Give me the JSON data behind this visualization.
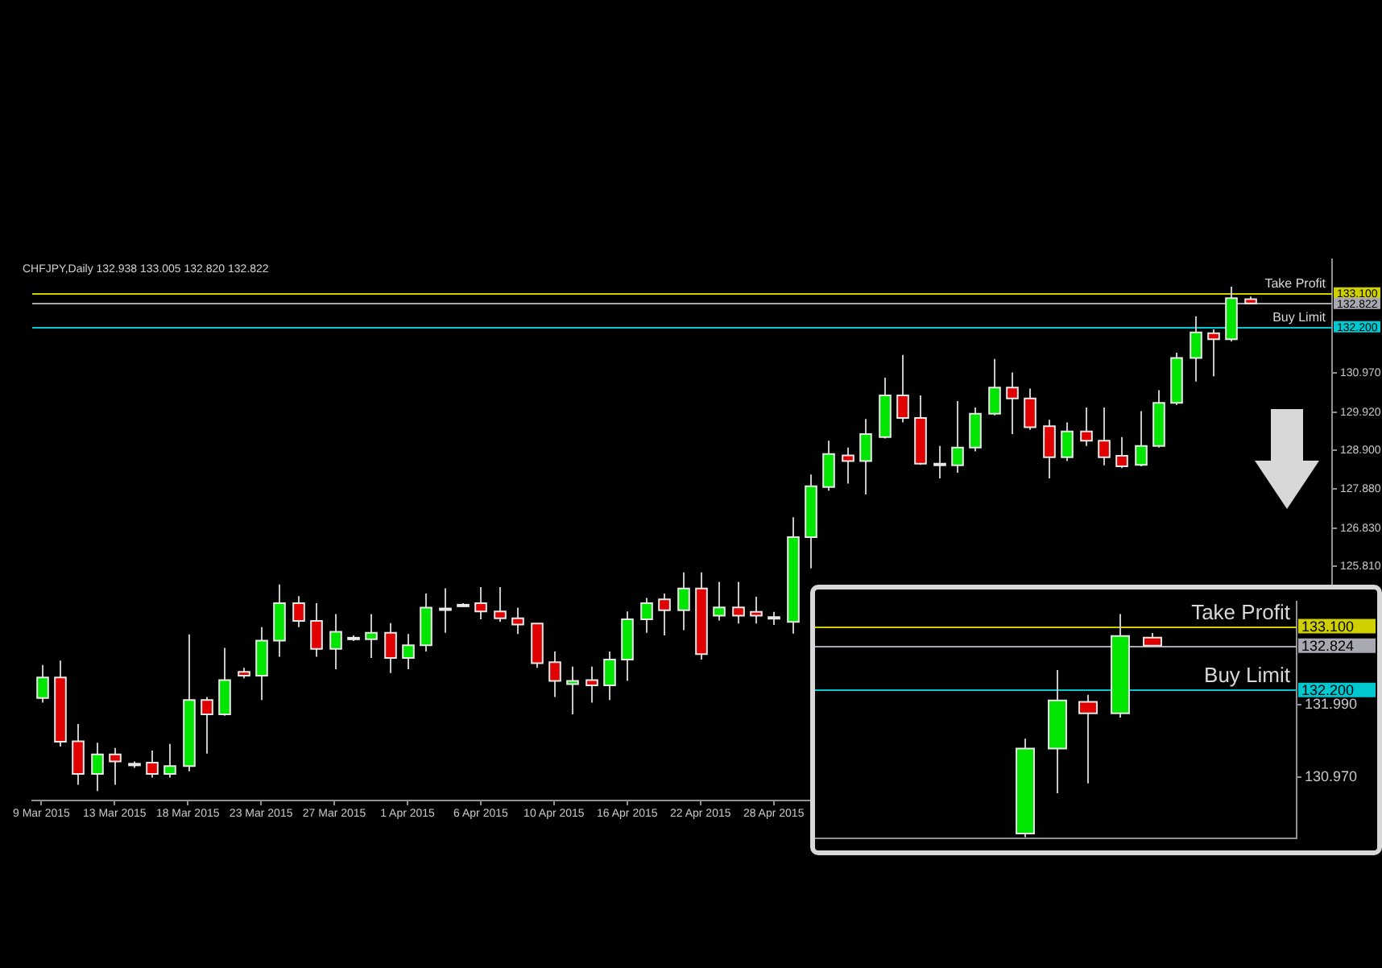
{
  "chart_data": [
    {
      "type": "candlestick",
      "title": "CHFJPY,Daily 132.938 133.005 132.820 132.822",
      "categories": [
        "9 Mar 2015",
        null,
        null,
        null,
        "13 Mar 2015",
        null,
        null,
        null,
        "18 Mar 2015",
        null,
        null,
        null,
        "23 Mar 2015",
        null,
        null,
        null,
        "27 Mar 2015",
        null,
        null,
        null,
        "1 Apr 2015",
        null,
        null,
        null,
        "6 Apr 2015",
        null,
        null,
        null,
        "10 Apr 2015",
        null,
        null,
        null,
        "16 Apr 2015",
        null,
        null,
        null,
        "22 Apr 2015",
        null,
        null,
        null,
        "28 Apr 2015",
        null,
        null,
        null,
        null,
        null,
        null,
        null,
        null,
        null,
        null,
        null,
        null,
        null,
        null,
        null,
        null,
        null,
        null,
        null,
        null,
        null,
        null,
        null,
        null,
        null,
        null,
        null,
        null,
        null,
        null
      ],
      "ohlc": [
        [
          122.3,
          123.18,
          122.18,
          122.85
        ],
        [
          122.85,
          123.3,
          121.01,
          121.14
        ],
        [
          121.15,
          121.61,
          119.99,
          120.28
        ],
        [
          120.28,
          121.11,
          119.82,
          120.8
        ],
        [
          120.8,
          120.97,
          119.99,
          120.61
        ],
        [
          120.53,
          120.61,
          120.44,
          120.55
        ],
        [
          120.58,
          120.9,
          120.18,
          120.28
        ],
        [
          120.28,
          121.08,
          120.18,
          120.49
        ],
        [
          120.49,
          124.0,
          120.35,
          122.25
        ],
        [
          122.25,
          122.33,
          120.82,
          121.87
        ],
        [
          121.87,
          123.64,
          121.83,
          122.78
        ],
        [
          123.0,
          123.11,
          122.83,
          122.9
        ],
        [
          122.9,
          124.19,
          122.25,
          123.83
        ],
        [
          123.83,
          125.33,
          123.4,
          124.83
        ],
        [
          124.83,
          125.02,
          124.19,
          124.36
        ],
        [
          124.36,
          124.83,
          123.4,
          123.61
        ],
        [
          123.61,
          124.54,
          123.07,
          124.07
        ],
        [
          123.91,
          123.97,
          123.82,
          123.9
        ],
        [
          123.87,
          124.54,
          123.37,
          124.04
        ],
        [
          124.04,
          124.3,
          122.97,
          123.37
        ],
        [
          123.37,
          124.01,
          123.07,
          123.71
        ],
        [
          123.71,
          125.09,
          123.54,
          124.71
        ],
        [
          124.68,
          125.23,
          124.04,
          124.69
        ],
        [
          124.78,
          124.83,
          124.73,
          124.79
        ],
        [
          124.83,
          125.26,
          124.4,
          124.61
        ],
        [
          124.61,
          125.26,
          124.33,
          124.43
        ],
        [
          124.43,
          124.71,
          124.01,
          124.26
        ],
        [
          124.29,
          124.29,
          123.11,
          123.23
        ],
        [
          123.26,
          123.54,
          122.33,
          122.76
        ],
        [
          122.67,
          123.14,
          121.87,
          122.76
        ],
        [
          122.78,
          123.14,
          122.18,
          122.64
        ],
        [
          122.64,
          123.54,
          122.25,
          123.33
        ],
        [
          123.33,
          124.61,
          122.76,
          124.4
        ],
        [
          124.4,
          124.97,
          124.04,
          124.83
        ],
        [
          124.93,
          125.09,
          123.97,
          124.64
        ],
        [
          124.64,
          125.65,
          124.11,
          125.22
        ],
        [
          125.22,
          125.65,
          123.33,
          123.47
        ],
        [
          124.5,
          125.4,
          124.37,
          124.72
        ],
        [
          124.72,
          125.4,
          124.29,
          124.5
        ],
        [
          124.6,
          125.0,
          124.29,
          124.5
        ],
        [
          124.44,
          124.6,
          124.25,
          124.46
        ],
        [
          124.33,
          127.12,
          124.02,
          126.59
        ],
        [
          126.59,
          128.26,
          125.76,
          127.95
        ],
        [
          127.93,
          129.16,
          127.83,
          128.81
        ],
        [
          128.77,
          128.98,
          128.02,
          128.62
        ],
        [
          128.62,
          129.74,
          127.73,
          129.34
        ],
        [
          129.26,
          130.84,
          129.22,
          130.37
        ],
        [
          130.37,
          131.45,
          129.65,
          129.77
        ],
        [
          129.77,
          130.37,
          128.52,
          128.55
        ],
        [
          128.54,
          129.02,
          128.16,
          128.55
        ],
        [
          128.51,
          130.22,
          128.31,
          128.98
        ],
        [
          128.98,
          130.05,
          128.88,
          129.88
        ],
        [
          129.88,
          131.34,
          129.84,
          130.58
        ],
        [
          130.58,
          130.98,
          129.34,
          130.29
        ],
        [
          130.29,
          130.55,
          129.45,
          129.52
        ],
        [
          129.55,
          129.72,
          128.16,
          128.72
        ],
        [
          128.72,
          129.65,
          128.62,
          129.41
        ],
        [
          129.41,
          130.05,
          129.02,
          129.16
        ],
        [
          129.16,
          130.05,
          128.51,
          128.72
        ],
        [
          128.76,
          129.26,
          128.43,
          128.48
        ],
        [
          128.52,
          129.95,
          128.48,
          129.02
        ],
        [
          129.02,
          130.51,
          128.98,
          130.17
        ],
        [
          130.17,
          131.51,
          130.12,
          131.37
        ],
        [
          131.37,
          132.48,
          130.74,
          132.05
        ],
        [
          132.03,
          132.13,
          130.88,
          131.87
        ],
        [
          131.87,
          133.27,
          131.81,
          132.96
        ],
        [
          132.938,
          133.005,
          132.82,
          132.822
        ],
        null,
        null,
        null,
        null
      ],
      "colors": [
        "#00e600",
        "#e00000",
        "#e00000",
        "#00e600",
        "#e00000",
        "#ffffff",
        "#e00000",
        "#00e600",
        "#00e600",
        "#e00000",
        "#00e600",
        "#e00000",
        "#00e600",
        "#00e600",
        "#e00000",
        "#e00000",
        "#00e600",
        "#ffffff",
        "#00e600",
        "#e00000",
        "#00e600",
        "#00e600",
        "#ffffff",
        "#ffffff",
        "#e00000",
        "#e00000",
        "#e00000",
        "#e00000",
        "#e00000",
        "#00e600",
        "#e00000",
        "#00e600",
        "#00e600",
        "#00e600",
        "#e00000",
        "#00e600",
        "#e00000",
        "#00e600",
        "#e00000",
        "#e00000",
        "#ffffff",
        "#00e600",
        "#00e600",
        "#00e600",
        "#e00000",
        "#00e600",
        "#00e600",
        "#e00000",
        "#e00000",
        "#ffffff",
        "#00e600",
        "#00e600",
        "#00e600",
        "#e00000",
        "#e00000",
        "#e00000",
        "#00e600",
        "#e00000",
        "#e00000",
        "#e00000",
        "#00e600",
        "#00e600",
        "#00e600",
        "#00e600",
        "#e00000",
        "#00e600",
        "#e00000",
        null,
        null,
        null,
        null
      ],
      "ylim": [
        119.57,
        133.99
      ],
      "yticks": [
        {
          "value": 133.1,
          "label": "133.100"
        },
        {
          "value": 132.822,
          "label": "132.822"
        },
        {
          "value": 132.2,
          "label": "132.200"
        },
        {
          "value": 130.97,
          "label": "130.970"
        },
        {
          "value": 129.92,
          "label": "129.920"
        },
        {
          "value": 128.9,
          "label": "128.900"
        },
        {
          "value": 127.88,
          "label": "127.880"
        },
        {
          "value": 126.83,
          "label": "126.830"
        },
        {
          "value": 125.81,
          "label": "125.810"
        }
      ],
      "ref_lines": [
        {
          "axis": "y",
          "value": 133.1,
          "label": "Take Profit",
          "color": "#d0d000"
        },
        {
          "axis": "y",
          "value": 132.822,
          "color": "#a8a8b0"
        },
        {
          "axis": "y",
          "value": 132.2,
          "label": "Buy Limit",
          "color": "#00c8d0"
        }
      ]
    },
    {
      "type": "candlestick",
      "categories": [
        null,
        null,
        null,
        null,
        null,
        null,
        null,
        null,
        null,
        null,
        null,
        null,
        null,
        null,
        null
      ],
      "ohlc": [
        null,
        null,
        null,
        null,
        null,
        null,
        [
          130.17,
          131.51,
          130.12,
          131.37
        ],
        [
          131.37,
          132.48,
          130.74,
          132.05
        ],
        [
          132.03,
          132.13,
          130.88,
          131.87
        ],
        [
          131.87,
          133.27,
          131.81,
          132.96
        ],
        [
          132.938,
          133.005,
          132.82,
          132.824
        ],
        null,
        null,
        null,
        null
      ],
      "colors": [
        null,
        null,
        null,
        null,
        null,
        null,
        "#00e600",
        "#00e600",
        "#e00000",
        "#00e600",
        "#e00000",
        null,
        null,
        null,
        null
      ],
      "ylim": [
        130.1,
        133.45
      ],
      "yticks": [
        {
          "value": 133.1,
          "label": "133.100"
        },
        {
          "value": 132.824,
          "label": "132.824"
        },
        {
          "value": 132.2,
          "label": "132.200"
        },
        {
          "value": 131.99,
          "label": "131.990"
        },
        {
          "value": 130.97,
          "label": "130.970"
        }
      ],
      "ref_lines": [
        {
          "axis": "y",
          "value": 133.1,
          "label": "Take Profit",
          "color": "#d0d000"
        },
        {
          "axis": "y",
          "value": 132.824,
          "color": "#a8a8b0"
        },
        {
          "axis": "y",
          "value": 132.2,
          "label": "Buy Limit",
          "color": "#00c8d0"
        }
      ],
      "tick_labels": "y"
    }
  ]
}
